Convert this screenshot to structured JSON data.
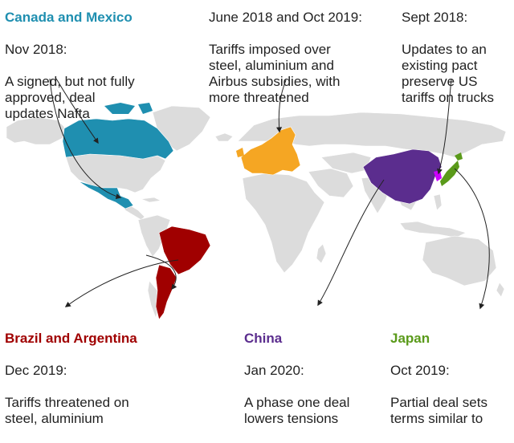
{
  "colors": {
    "land": "#dcdcdc",
    "land_border": "#ffffff",
    "canada_mexico": "#1f8fb0",
    "eu": "#f5a623",
    "south_korea": "#cc00ff",
    "brazil_argentina": "#a00000",
    "china": "#5b2d8e",
    "japan": "#5a9a1a",
    "arrow": "#222222"
  },
  "labels": {
    "canada_mexico": {
      "heading": "Canada and Mexico",
      "date": "Nov 2018:",
      "body": "A signed, but not fully\napproved, deal\nupdates Nafta",
      "color": "#1f8fb0"
    },
    "eu": {
      "heading": "",
      "date": "June 2018 and Oct 2019:",
      "body": "Tariffs imposed over\nsteel, aluminium and\nAirbus subsidies, with\nmore threatened"
    },
    "south_korea": {
      "heading": "",
      "date": "Sept 2018:",
      "body": "Updates to an\nexisting pact\npreserve US\ntariffs on trucks"
    },
    "brazil_argentina": {
      "heading": "Brazil and Argentina",
      "date": "Dec 2019:",
      "body": "Tariffs threatened on\nsteel, aluminium",
      "color": "#a00000"
    },
    "china": {
      "heading": "China",
      "date": "Jan 2020:",
      "body": "A phase one deal\nlowers tensions",
      "color": "#5b2d8e"
    },
    "japan": {
      "heading": "Japan",
      "date": "Oct 2019:",
      "body": "Partial deal sets\nterms similar to",
      "color": "#5a9a1a"
    }
  }
}
